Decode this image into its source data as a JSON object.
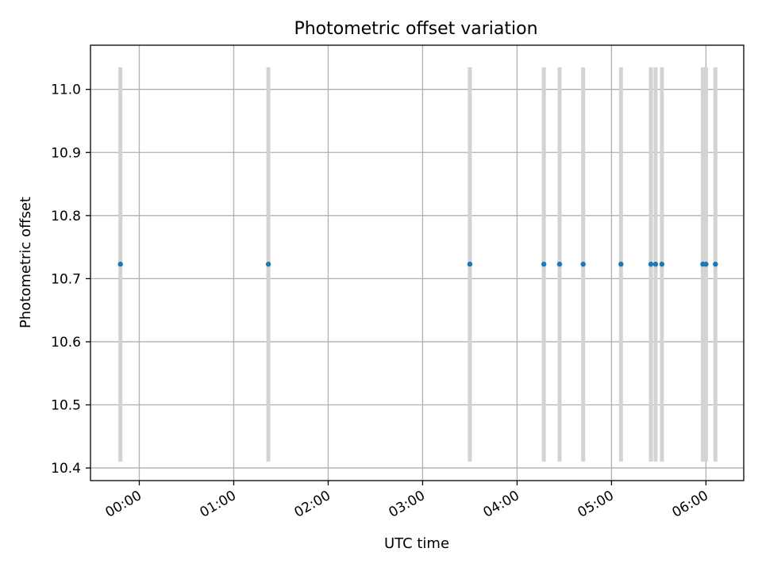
{
  "chart_data": {
    "type": "scatter",
    "title": "Photometric offset variation",
    "xlabel": "UTC time",
    "ylabel": "Photometric offset",
    "x_ticks": [
      "00:00",
      "01:00",
      "02:00",
      "03:00",
      "04:00",
      "05:00",
      "06:00"
    ],
    "y_ticks": [
      "10.4",
      "10.5",
      "10.6",
      "10.7",
      "10.8",
      "10.9",
      "11.0"
    ],
    "xlim": [
      "-00:31",
      "06:24"
    ],
    "ylim": [
      10.38,
      11.07
    ],
    "grid": true,
    "series": [
      {
        "color": "#1f77b4",
        "errorbar_color": "#d3d3d3",
        "points": [
          {
            "time": "-00:12",
            "y": 10.723,
            "ylow": 10.41,
            "yhigh": 11.035
          },
          {
            "time": "01:22",
            "y": 10.723,
            "ylow": 10.41,
            "yhigh": 11.035
          },
          {
            "time": "03:30",
            "y": 10.723,
            "ylow": 10.41,
            "yhigh": 11.035
          },
          {
            "time": "04:17",
            "y": 10.723,
            "ylow": 10.41,
            "yhigh": 11.035
          },
          {
            "time": "04:27",
            "y": 10.723,
            "ylow": 10.41,
            "yhigh": 11.035
          },
          {
            "time": "04:42",
            "y": 10.723,
            "ylow": 10.41,
            "yhigh": 11.035
          },
          {
            "time": "05:06",
            "y": 10.723,
            "ylow": 10.41,
            "yhigh": 11.035
          },
          {
            "time": "05:25",
            "y": 10.723,
            "ylow": 10.41,
            "yhigh": 11.035
          },
          {
            "time": "05:28",
            "y": 10.723,
            "ylow": 10.41,
            "yhigh": 11.035
          },
          {
            "time": "05:32",
            "y": 10.723,
            "ylow": 10.41,
            "yhigh": 11.035
          },
          {
            "time": "05:58",
            "y": 10.723,
            "ylow": 10.41,
            "yhigh": 11.035
          },
          {
            "time": "06:00",
            "y": 10.723,
            "ylow": 10.41,
            "yhigh": 11.035
          },
          {
            "time": "06:06",
            "y": 10.723,
            "ylow": 10.41,
            "yhigh": 11.035
          }
        ]
      }
    ]
  }
}
